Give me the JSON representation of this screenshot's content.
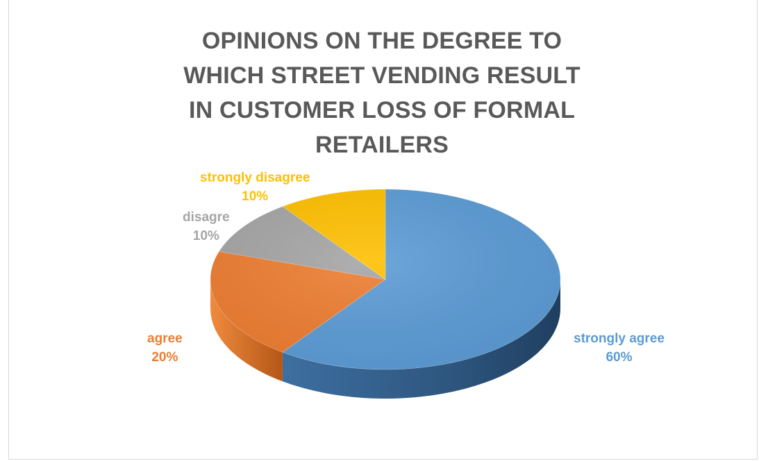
{
  "chart_data": {
    "type": "pie",
    "title": "OPINIONS ON THE DEGREE TO WHICH STREET VENDING RESULT IN CUSTOMER LOSS OF FORMAL RETAILERS",
    "categories": [
      "strongly agree",
      "agree",
      "disagre",
      "strongly disagree"
    ],
    "values": [
      60,
      20,
      10,
      10
    ],
    "value_labels": [
      "60%",
      "20%",
      "10%",
      "10%"
    ],
    "colors": [
      "#5b9bd5",
      "#ed7d31",
      "#a5a5a5",
      "#ffc000"
    ],
    "style": "3d",
    "legend": "none"
  }
}
